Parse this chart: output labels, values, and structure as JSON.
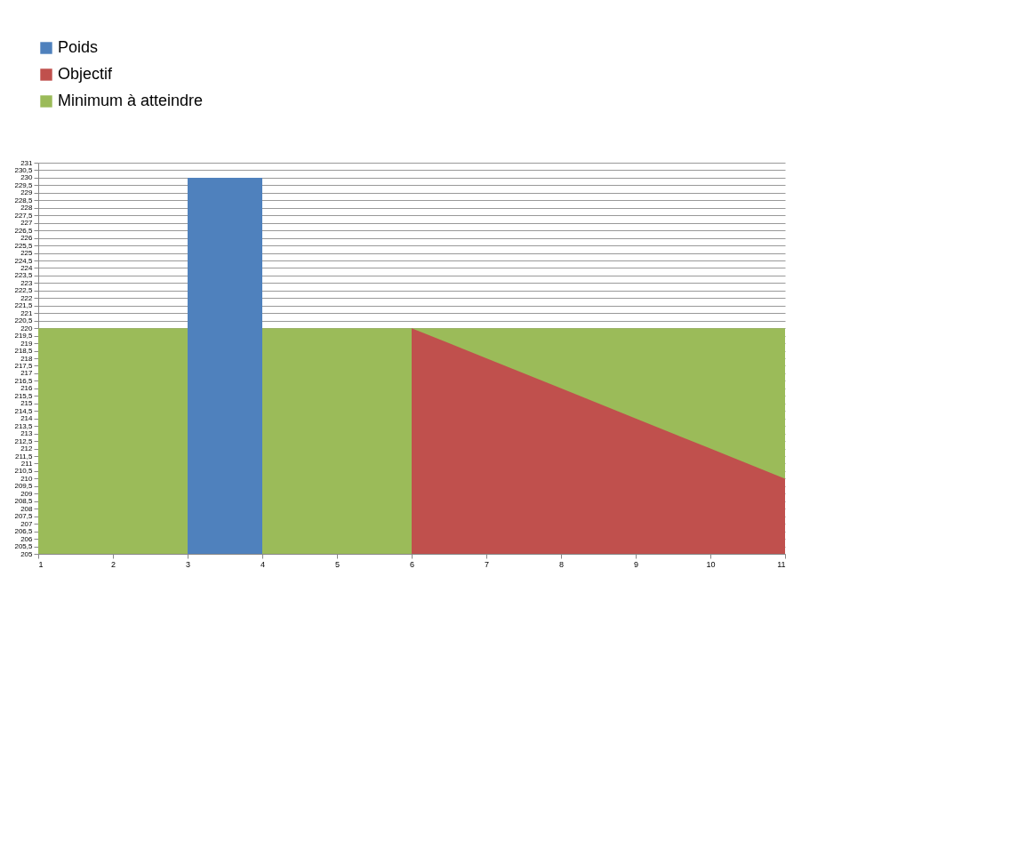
{
  "chart_data": {
    "type": "area",
    "x": [
      1,
      2,
      3,
      4,
      5,
      6,
      7,
      8,
      9,
      10,
      11
    ],
    "xlim": [
      1,
      11
    ],
    "xticks": [
      1,
      2,
      3,
      4,
      5,
      6,
      7,
      8,
      9,
      10,
      11
    ],
    "ylim": [
      205,
      231
    ],
    "yticks": [
      205,
      {
        "value": 205.5,
        "label": "205,5"
      },
      206,
      {
        "value": 206.5,
        "label": "206,5"
      },
      207,
      {
        "value": 207.5,
        "label": "207,5"
      },
      208,
      {
        "value": 208.5,
        "label": "208,5"
      },
      209,
      {
        "value": 209.5,
        "label": "209,5"
      },
      210,
      {
        "value": 210.5,
        "label": "210,5"
      },
      211,
      {
        "value": 211.5,
        "label": "211,5"
      },
      212,
      {
        "value": 212.5,
        "label": "212,5"
      },
      213,
      {
        "value": 213.5,
        "label": "213,5"
      },
      214,
      {
        "value": 214.5,
        "label": "214,5"
      },
      215,
      {
        "value": 215.5,
        "label": "215,5"
      },
      216,
      {
        "value": 216.5,
        "label": "216,5"
      },
      217,
      {
        "value": 217.5,
        "label": "217,5"
      },
      218,
      {
        "value": 218.5,
        "label": "218,5"
      },
      219,
      {
        "value": 219.5,
        "label": "219,5"
      },
      220,
      {
        "value": 220.5,
        "label": "220,5"
      },
      221,
      {
        "value": 221.5,
        "label": "221,5"
      },
      222,
      {
        "value": 222.5,
        "label": "222,5"
      },
      223,
      {
        "value": 223.5,
        "label": "223,5"
      },
      224,
      {
        "value": 224.5,
        "label": "224,5"
      },
      225,
      {
        "value": 225.5,
        "label": "225,5"
      },
      226,
      {
        "value": 226.5,
        "label": "226,5"
      },
      227,
      {
        "value": 227.5,
        "label": "227,5"
      },
      228,
      {
        "value": 228.5,
        "label": "228,5"
      },
      229,
      {
        "value": 229.5,
        "label": "229,5"
      },
      230,
      {
        "value": 230.5,
        "label": "230,5"
      },
      231
    ],
    "grid": "y",
    "legend": "top left",
    "series": [
      {
        "name": "Poids",
        "color": "#4f81bd",
        "values": [
          null,
          null,
          230,
          230,
          null,
          null,
          null,
          null,
          null,
          null,
          null
        ]
      },
      {
        "name": "Objectif",
        "color": "#c0504d",
        "values": [
          null,
          null,
          null,
          null,
          null,
          220,
          218,
          216,
          214,
          212,
          210
        ]
      },
      {
        "name": "Minimum à atteindre",
        "color": "#9bbb59",
        "values": [
          220,
          220,
          220,
          220,
          220,
          220,
          220,
          220,
          220,
          220,
          220
        ]
      }
    ]
  }
}
